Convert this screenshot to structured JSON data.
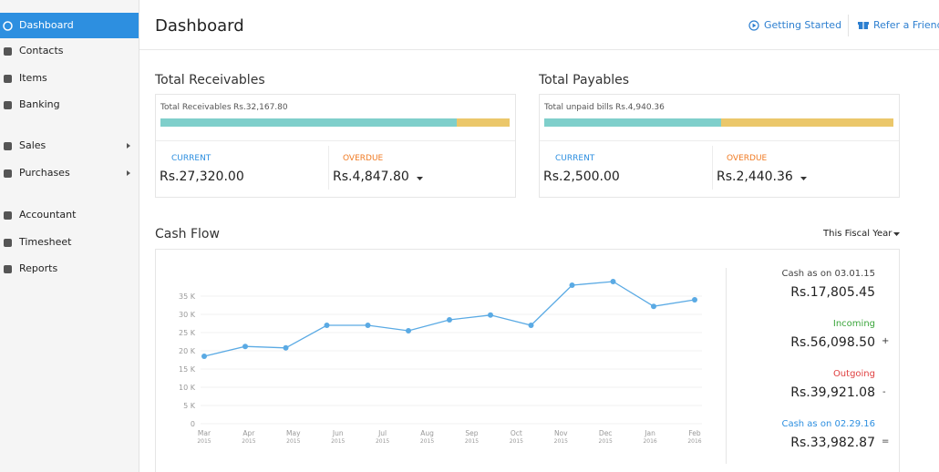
{
  "sidebar": {
    "items": [
      "Dashboard",
      "Contacts",
      "Items",
      "Banking",
      "Sales",
      "Purchases",
      "Accountant",
      "Timesheet",
      "Reports"
    ]
  },
  "header": {
    "title": "Dashboard",
    "links": [
      "Getting Started",
      "Refer a Friend"
    ]
  },
  "receivables": {
    "title": "Total Receivables",
    "summary_label": "Total Receivables",
    "summary_amount": "Rs.32,167.80",
    "current_label": "CURRENT",
    "current": "Rs.27,320.00",
    "overdue_label": "OVERDUE",
    "overdue": "Rs.4,847.80"
  },
  "payables": {
    "title": "Total Payables",
    "summary_label": "Total unpaid bills",
    "summary_amount": "Rs.4,940.36",
    "current_label": "CURRENT",
    "current": "Rs.2,500.00",
    "overdue_label": "OVERDUE",
    "overdue": "Rs.2,440.36"
  },
  "cash_flow": {
    "period": "This Fiscal Year"
  },
  "cash_summary": {
    "opening_label": "Cash as on 03.01.15",
    "opening": "Rs.17,805.45",
    "incoming_label": "Incoming",
    "incoming": "Rs.56,098.50",
    "incoming_sign": "+",
    "outgoing_label": "Outgoing",
    "outgoing": "Rs.39,921.08",
    "outgoing_sign": "-",
    "closing_label": "Cash as on 02.29.16",
    "closing": "Rs.33,982.87",
    "closing_sign": "="
  },
  "chart_data": {
    "type": "line",
    "title": "Cash Flow",
    "color": "#5aaae4",
    "grid": true,
    "x": [
      0,
      0.92,
      1.83,
      2.75,
      3.67,
      4.58,
      5.5,
      6.42,
      7.33,
      8.25,
      9.17,
      10.08,
      11
    ],
    "values": [
      18.5,
      21.2,
      20.8,
      27,
      27,
      25.5,
      28.5,
      29.8,
      27,
      38,
      39,
      32.2,
      34
    ],
    "xlim": [
      0,
      11
    ],
    "xticks": [
      {
        "value": 0,
        "label": "Mar 2015"
      },
      {
        "value": 1,
        "label": "Apr 2015"
      },
      {
        "value": 2,
        "label": "May 2015"
      },
      {
        "value": 3,
        "label": "Jun 2015"
      },
      {
        "value": 4,
        "label": "Jul 2015"
      },
      {
        "value": 5,
        "label": "Aug 2015"
      },
      {
        "value": 6,
        "label": "Sep 2015"
      },
      {
        "value": 7,
        "label": "Oct 2015"
      },
      {
        "value": 8,
        "label": "Nov 2015"
      },
      {
        "value": 9,
        "label": "Dec 2015"
      },
      {
        "value": 10,
        "label": "Jan 2016"
      },
      {
        "value": 11,
        "label": "Feb 2016"
      }
    ],
    "ylim": [
      0,
      40
    ],
    "yticks": [
      0,
      {
        "value": 5,
        "label": "5 K"
      },
      {
        "value": 10,
        "label": "10 K"
      },
      {
        "value": 15,
        "label": "15 K"
      },
      {
        "value": 20,
        "label": "20 K"
      },
      {
        "value": 25,
        "label": "25 K"
      },
      {
        "value": 30,
        "label": "30 K"
      },
      {
        "value": 35,
        "label": "35 K"
      }
    ]
  }
}
